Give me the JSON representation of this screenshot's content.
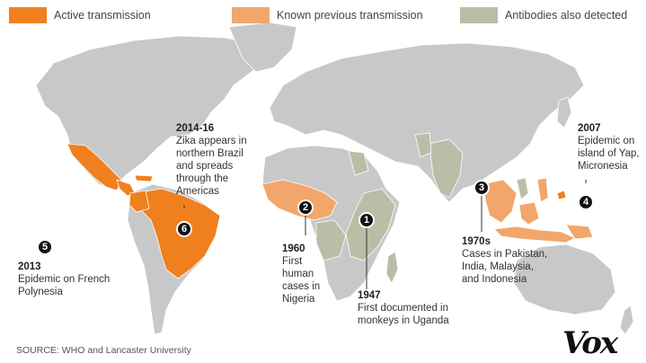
{
  "legend": [
    {
      "label": "Active transmission",
      "color": "#f07f1e"
    },
    {
      "label": "Known previous transmission",
      "color": "#f2a66b"
    },
    {
      "label": "Antibodies also detected",
      "color": "#b9bfa6"
    }
  ],
  "colors": {
    "land": "#c8c8c8",
    "ocean": "#ffffff",
    "badge": "#111111"
  },
  "events": [
    {
      "num": "1",
      "year": "1947",
      "text": "First documented in monkeys in Uganda"
    },
    {
      "num": "2",
      "year": "1960",
      "text": "First human cases in Nigeria"
    },
    {
      "num": "3",
      "year": "1970s",
      "text": "Cases in Pakistan, India, Malaysia, and Indonesia"
    },
    {
      "num": "4",
      "year": "2007",
      "text": "Epidemic on island of Yap, Micronesia"
    },
    {
      "num": "5",
      "year": "2013",
      "text": "Epidemic on French Polynesia"
    },
    {
      "num": "6",
      "year": "2014-16",
      "text": "Zika appears in northern Brazil and spreads through the Americas"
    }
  ],
  "source": "SOURCE: WHO and Lancaster University",
  "brand": "Vox"
}
